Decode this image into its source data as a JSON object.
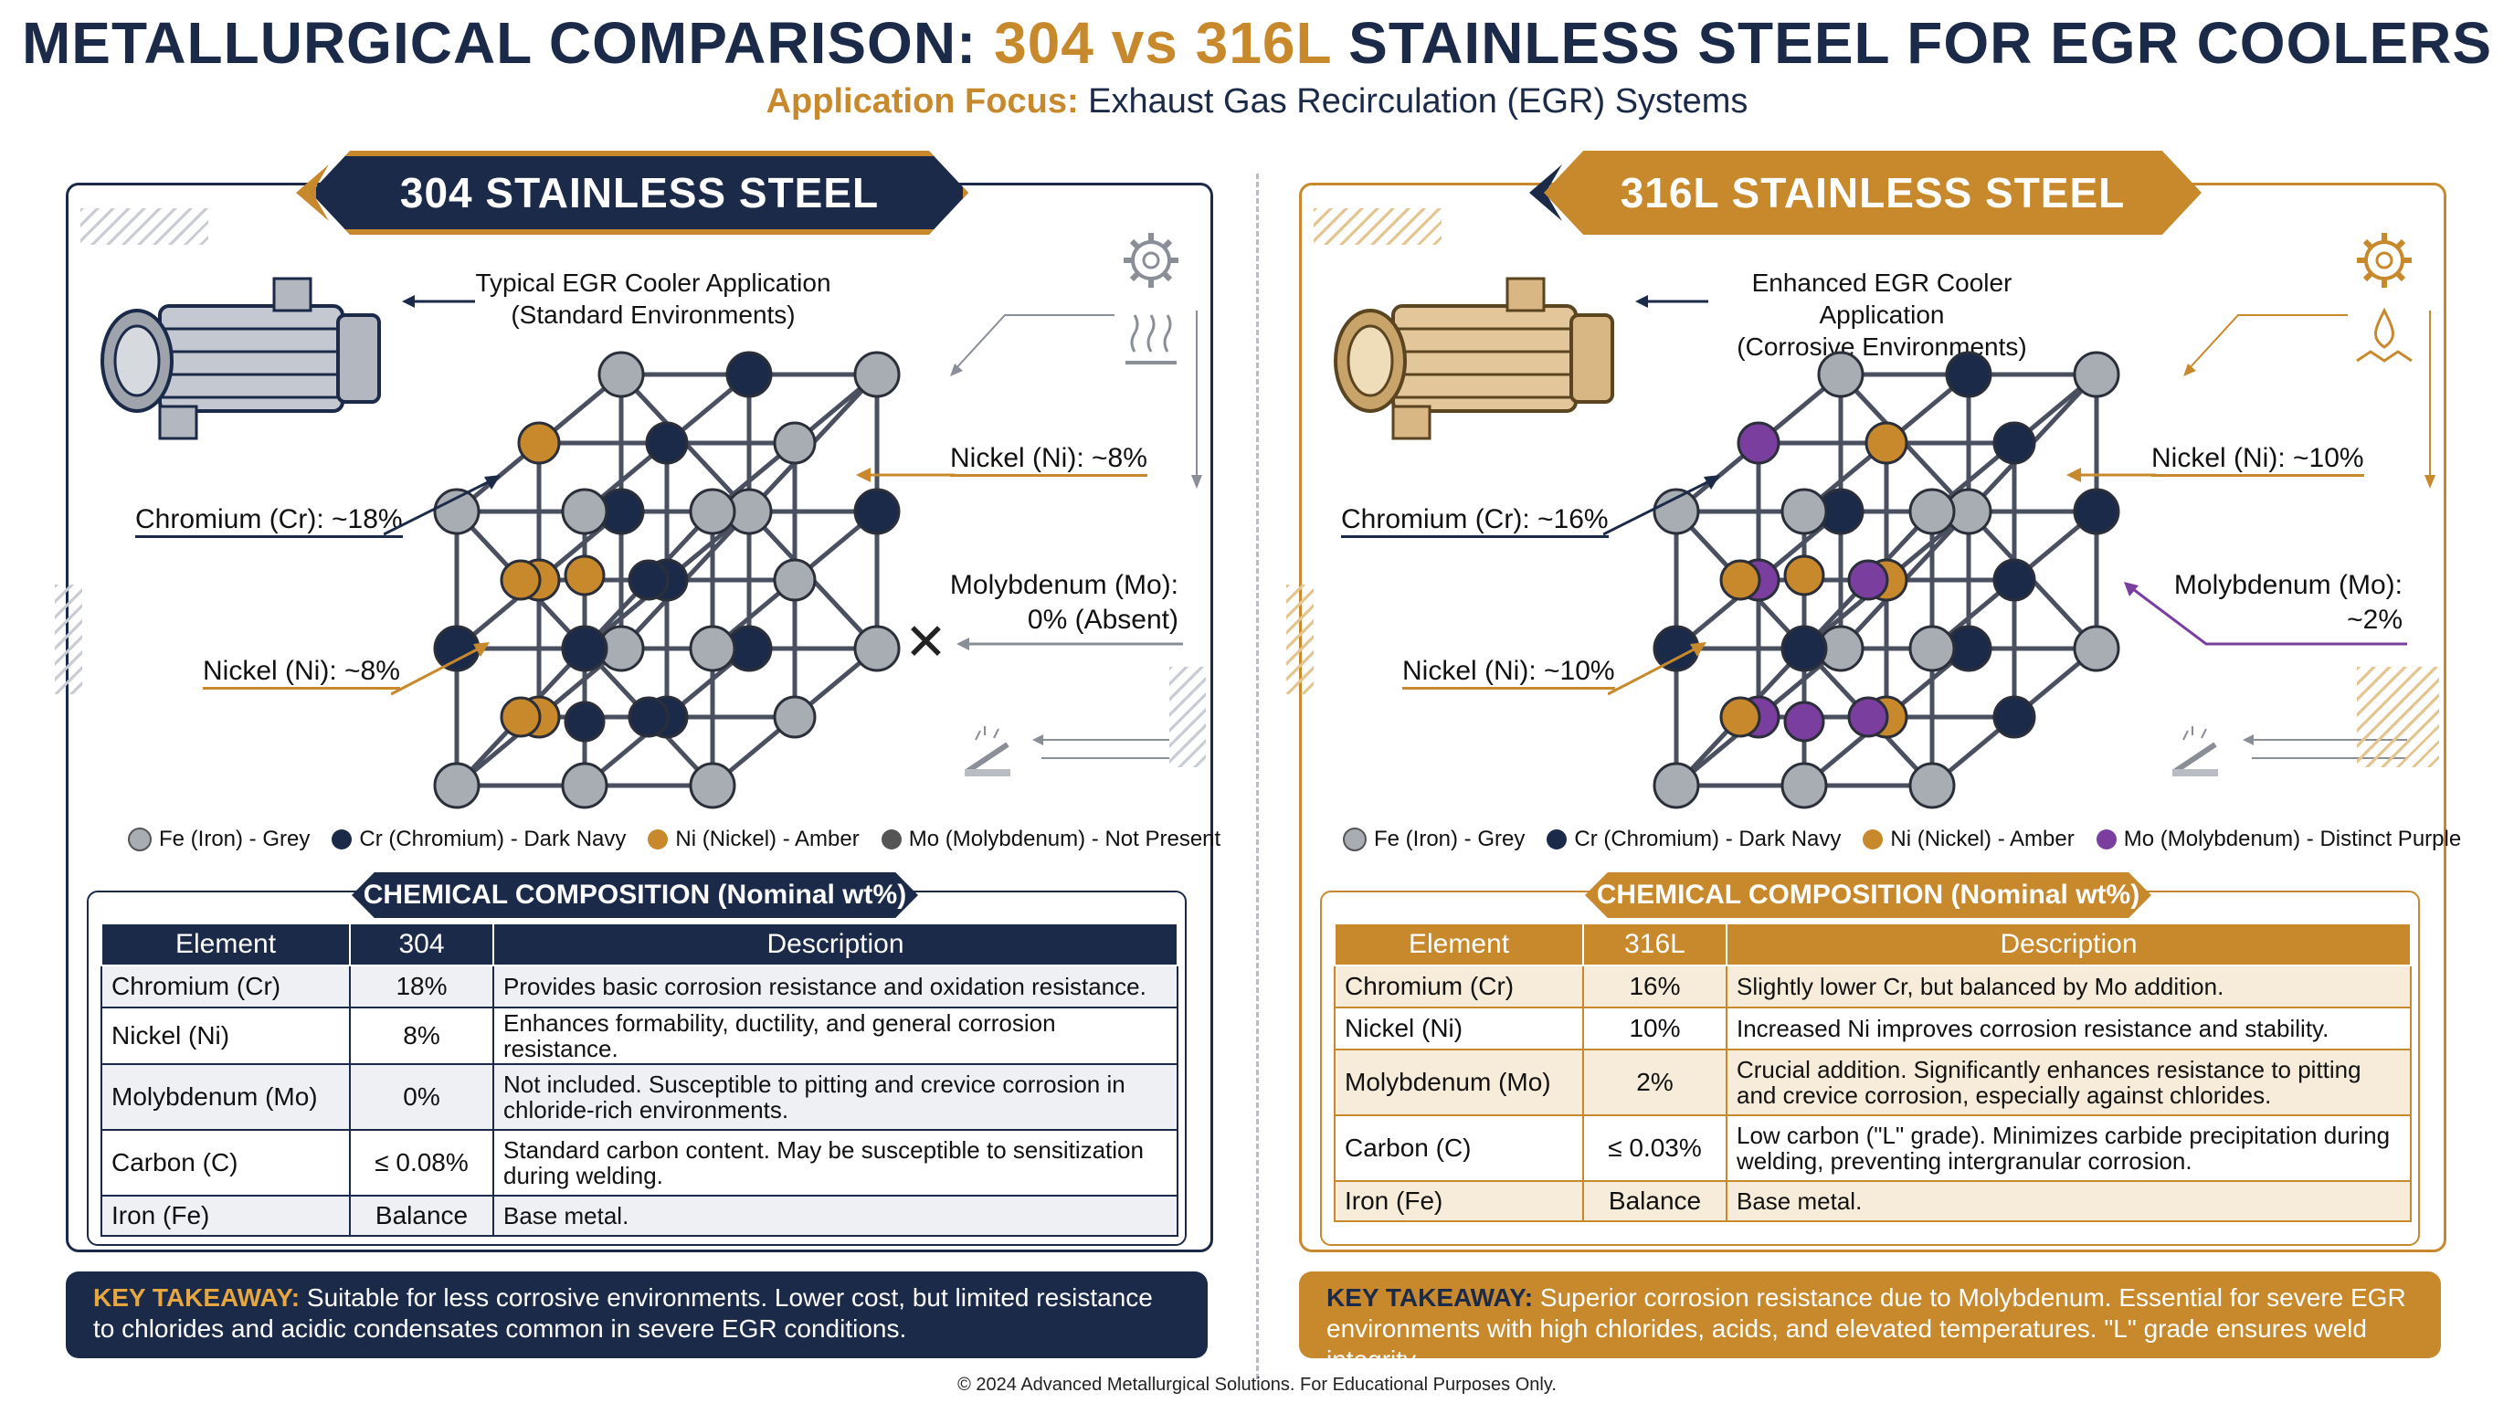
{
  "title": {
    "part1": "METALLURGICAL COMPARISON: ",
    "gold": "304 vs 316L",
    "part2": " STAINLESS STEEL FOR EGR COOLERS"
  },
  "subtitle": {
    "label": "Application Focus:",
    "text": " Exhaust Gas Recirculation (EGR) Systems"
  },
  "left": {
    "ribbon": "304 STAINLESS STEEL",
    "app_line1": "Typical EGR Cooler Application",
    "app_line2": "(Standard Environments)",
    "label_cr": "Chromium (Cr): ~18%",
    "label_ni_top": "Nickel (Ni): ~8%",
    "label_ni_bottom": "Nickel (Ni): ~8%",
    "label_mo_line1": "Molybdenum (Mo):",
    "label_mo_line2": "0% (Absent)",
    "legend": [
      "Fe (Iron) - Grey",
      "Cr (Chromium) - Dark Navy",
      "Ni (Nickel) - Amber",
      "Mo (Molybdenum) - Not Present"
    ],
    "comp_header": "CHEMICAL COMPOSITION (Nominal wt%)",
    "table_headers": [
      "Element",
      "304",
      "Description"
    ],
    "rows": [
      {
        "element": "Chromium (Cr)",
        "value": "18%",
        "desc": "Provides basic corrosion resistance and oxidation resistance."
      },
      {
        "element": "Nickel (Ni)",
        "value": "8%",
        "desc": "Enhances formability, ductility, and general corrosion resistance."
      },
      {
        "element": "Molybdenum (Mo)",
        "value": "0%",
        "desc": "Not included. Susceptible to pitting and crevice corrosion in chloride-rich environments."
      },
      {
        "element": "Carbon (C)",
        "value": "≤ 0.08%",
        "desc": "Standard carbon content. May be susceptible to sensitization during welding."
      },
      {
        "element": "Iron (Fe)",
        "value": "Balance",
        "desc": "Base metal."
      }
    ],
    "takeaway_key": "KEY TAKEAWAY:",
    "takeaway_text": " Suitable for less corrosive environments. Lower cost, but limited resistance to chlorides and acidic condensates common in severe EGR conditions."
  },
  "right": {
    "ribbon": "316L STAINLESS STEEL",
    "app_line1": "Enhanced EGR Cooler Application",
    "app_line2": "(Corrosive Environments)",
    "label_cr": "Chromium (Cr): ~16%",
    "label_ni_top": "Nickel (Ni): ~10%",
    "label_ni_bottom": "Nickel (Ni): ~10%",
    "label_mo_line1": "Molybdenum (Mo):",
    "label_mo_line2": "~2%",
    "legend": [
      "Fe (Iron) - Grey",
      "Cr (Chromium) - Dark Navy",
      "Ni (Nickel) - Amber",
      "Mo (Molybdenum) - Distinct Purple"
    ],
    "comp_header": "CHEMICAL COMPOSITION (Nominal wt%)",
    "table_headers": [
      "Element",
      "316L",
      "Description"
    ],
    "rows": [
      {
        "element": "Chromium (Cr)",
        "value": "16%",
        "desc": "Slightly lower Cr, but balanced by Mo addition."
      },
      {
        "element": "Nickel (Ni)",
        "value": "10%",
        "desc": "Increased Ni improves corrosion resistance and stability."
      },
      {
        "element": "Molybdenum (Mo)",
        "value": "2%",
        "desc": "Crucial addition. Significantly enhances resistance to pitting and crevice corrosion, especially against chlorides."
      },
      {
        "element": "Carbon (C)",
        "value": "≤ 0.03%",
        "desc": "Low carbon (\"L\" grade). Minimizes carbide precipitation during welding, preventing intergranular corrosion."
      },
      {
        "element": "Iron (Fe)",
        "value": "Balance",
        "desc": "Base metal."
      }
    ],
    "takeaway_key": "KEY TAKEAWAY:",
    "takeaway_text": " Superior corrosion resistance due to Molybdenum. Essential for severe EGR environments with high chlorides, acids, and elevated temperatures. \"L\" grade ensures weld integrity."
  },
  "footer": "© 2024 Advanced Metallurgical Solutions. For Educational Purposes Only.",
  "colors": {
    "navy": "#1c2a4a",
    "gold": "#c7892b",
    "grey": "#a8acb3",
    "purple": "#7a3f9e"
  },
  "icons": [
    "gear-icon",
    "heat-waves-icon",
    "corrosion-drop-icon",
    "welding-torch-icon"
  ]
}
